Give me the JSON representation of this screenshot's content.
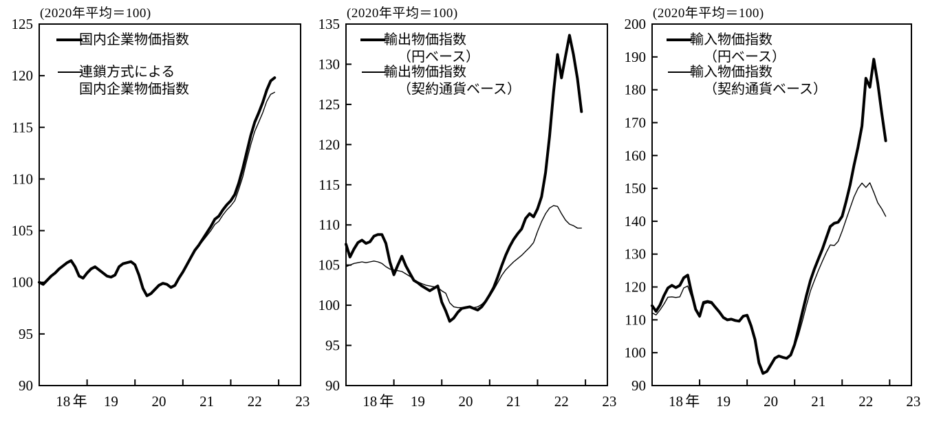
{
  "page": {
    "background": "#ffffff",
    "line_color": "#000000"
  },
  "panels": [
    {
      "header": "(2020年平均＝100)",
      "legend": [
        {
          "style": "thick",
          "lines": [
            "国内企業物価指数"
          ]
        },
        {
          "style": "thin",
          "lines": [
            "連鎖方式による",
            "国内企業物価指数"
          ]
        }
      ],
      "y_axis": {
        "min": 90,
        "max": 125,
        "step": 5
      },
      "x_labels": [
        "18",
        "年",
        "19",
        "20",
        "21",
        "22",
        "23"
      ]
    },
    {
      "header": "(2020年平均＝100)",
      "legend": [
        {
          "style": "thick",
          "lines": [
            "輸出物価指数",
            "（円ベース）"
          ]
        },
        {
          "style": "thin",
          "lines": [
            "輸出物価指数",
            "（契約通貨ベース）"
          ]
        }
      ],
      "y_axis": {
        "min": 90,
        "max": 135,
        "step": 5
      },
      "x_labels": [
        "18",
        "年",
        "19",
        "20",
        "21",
        "22",
        "23"
      ]
    },
    {
      "header": "(2020年平均＝100)",
      "legend": [
        {
          "style": "thick",
          "lines": [
            "輸入物価指数",
            "（円ベース）"
          ]
        },
        {
          "style": "thin",
          "lines": [
            "輸入物価指数",
            "（契約通貨ベース）"
          ]
        }
      ],
      "y_axis": {
        "min": 90,
        "max": 200,
        "step": 10
      },
      "x_labels": [
        "18",
        "年",
        "19",
        "20",
        "21",
        "22",
        "23"
      ]
    }
  ],
  "chart_data": {
    "type": "line",
    "note": "indexes, 2020 average = 100, monthly, Jan 2018 - Dec 2022",
    "months": [
      "2018-01",
      "2018-02",
      "2018-03",
      "2018-04",
      "2018-05",
      "2018-06",
      "2018-07",
      "2018-08",
      "2018-09",
      "2018-10",
      "2018-11",
      "2018-12",
      "2019-01",
      "2019-02",
      "2019-03",
      "2019-04",
      "2019-05",
      "2019-06",
      "2019-07",
      "2019-08",
      "2019-09",
      "2019-10",
      "2019-11",
      "2019-12",
      "2020-01",
      "2020-02",
      "2020-03",
      "2020-04",
      "2020-05",
      "2020-06",
      "2020-07",
      "2020-08",
      "2020-09",
      "2020-10",
      "2020-11",
      "2020-12",
      "2021-01",
      "2021-02",
      "2021-03",
      "2021-04",
      "2021-05",
      "2021-06",
      "2021-07",
      "2021-08",
      "2021-09",
      "2021-10",
      "2021-11",
      "2021-12",
      "2022-01",
      "2022-02",
      "2022-03",
      "2022-04",
      "2022-05",
      "2022-06",
      "2022-07",
      "2022-08",
      "2022-09",
      "2022-10",
      "2022-11",
      "2022-12"
    ],
    "charts": [
      {
        "type": "line",
        "title": "国内企業物価指数",
        "ylim": [
          90,
          125
        ],
        "ytick": 5,
        "series": [
          {
            "name": "国内企業物価指数",
            "style": "thick",
            "values": [
              100.0,
              99.8,
              100.2,
              100.6,
              100.9,
              101.3,
              101.6,
              101.9,
              102.1,
              101.5,
              100.6,
              100.4,
              100.9,
              101.3,
              101.5,
              101.2,
              100.9,
              100.6,
              100.5,
              100.7,
              101.5,
              101.8,
              101.9,
              102.0,
              101.7,
              100.7,
              99.4,
              98.7,
              98.9,
              99.3,
              99.7,
              99.9,
              99.8,
              99.5,
              99.7,
              100.4,
              101.0,
              101.7,
              102.4,
              103.1,
              103.6,
              104.2,
              104.8,
              105.4,
              106.1,
              106.4,
              107.0,
              107.5,
              107.9,
              108.5,
              109.6,
              111.0,
              112.6,
              114.2,
              115.5,
              116.4,
              117.4,
              118.6,
              119.5,
              119.8
            ]
          },
          {
            "name": "連鎖方式による国内企業物価指数",
            "style": "thin",
            "values": [
              100.0,
              99.8,
              100.2,
              100.6,
              100.9,
              101.3,
              101.6,
              101.9,
              102.1,
              101.5,
              100.6,
              100.4,
              100.9,
              101.3,
              101.5,
              101.2,
              100.9,
              100.6,
              100.5,
              100.7,
              101.5,
              101.8,
              101.9,
              102.0,
              101.7,
              100.7,
              99.4,
              98.7,
              98.9,
              99.3,
              99.7,
              99.9,
              99.8,
              99.5,
              99.7,
              100.4,
              100.9,
              101.6,
              102.3,
              103.0,
              103.5,
              104.0,
              104.5,
              105.0,
              105.6,
              105.9,
              106.5,
              107.0,
              107.4,
              107.9,
              109.0,
              110.2,
              111.8,
              113.3,
              114.6,
              115.5,
              116.4,
              117.5,
              118.2,
              118.4
            ]
          }
        ]
      },
      {
        "type": "line",
        "title": "輸出物価指数",
        "ylim": [
          90,
          135
        ],
        "ytick": 5,
        "series": [
          {
            "name": "輸出物価指数（円ベース）",
            "style": "thick",
            "values": [
              107.6,
              106.0,
              107.0,
              107.8,
              108.1,
              107.7,
              107.9,
              108.6,
              108.8,
              108.8,
              107.7,
              105.4,
              103.8,
              105.0,
              106.1,
              104.9,
              104.0,
              103.1,
              102.8,
              102.4,
              102.1,
              101.8,
              102.1,
              102.4,
              100.4,
              99.3,
              98.0,
              98.4,
              99.1,
              99.6,
              99.7,
              99.8,
              99.6,
              99.4,
              99.8,
              100.5,
              101.3,
              102.2,
              103.5,
              104.9,
              106.2,
              107.3,
              108.2,
              108.9,
              109.5,
              110.8,
              111.4,
              111.0,
              112.0,
              113.5,
              116.5,
              121.0,
              126.5,
              131.2,
              128.3,
              131.0,
              133.6,
              131.2,
              128.2,
              124.1
            ]
          },
          {
            "name": "輸出物価指数（契約通貨ベース）",
            "style": "thin",
            "values": [
              104.8,
              105.0,
              105.2,
              105.3,
              105.4,
              105.3,
              105.4,
              105.5,
              105.4,
              105.2,
              104.8,
              104.5,
              104.4,
              104.3,
              104.2,
              103.9,
              103.6,
              103.2,
              102.9,
              102.7,
              102.5,
              102.4,
              102.3,
              102.2,
              101.8,
              101.5,
              100.3,
              99.8,
              99.7,
              99.7,
              99.8,
              99.7,
              99.7,
              99.8,
              100.1,
              100.6,
              101.1,
              101.9,
              102.8,
              103.7,
              104.4,
              104.9,
              105.4,
              105.8,
              106.2,
              106.7,
              107.2,
              107.8,
              109.2,
              110.4,
              111.4,
              112.1,
              112.4,
              112.3,
              111.4,
              110.6,
              110.1,
              109.9,
              109.6,
              109.6
            ]
          }
        ]
      },
      {
        "type": "line",
        "title": "輸入物価指数",
        "ylim": [
          90,
          200
        ],
        "ytick": 10,
        "series": [
          {
            "name": "輸入物価指数（円ベース）",
            "style": "thick",
            "values": [
              114.3,
              112.6,
              114.5,
              117.4,
              119.7,
              120.5,
              119.8,
              120.5,
              122.8,
              123.6,
              118.0,
              113.2,
              111.1,
              115.3,
              115.6,
              115.3,
              113.8,
              112.4,
              110.7,
              110.0,
              110.2,
              109.8,
              109.6,
              111.1,
              111.4,
              108.2,
              104.0,
              96.9,
              93.7,
              94.3,
              96.3,
              98.3,
              99.0,
              98.6,
              98.3,
              99.3,
              102.5,
              107.5,
              112.5,
              117.5,
              122.0,
              125.5,
              128.5,
              131.5,
              135.0,
              138.4,
              139.4,
              139.7,
              141.5,
              146.0,
              151.0,
              157.0,
              162.5,
              169.0,
              183.5,
              180.8,
              189.3,
              182.0,
              173.0,
              164.5
            ]
          },
          {
            "name": "輸入物価指数（契約通貨ベース）",
            "style": "thin",
            "values": [
              112.1,
              111.5,
              113.0,
              114.8,
              116.9,
              117.0,
              116.8,
              117.0,
              119.7,
              120.3,
              116.8,
              112.8,
              110.8,
              114.8,
              115.2,
              114.9,
              113.4,
              112.0,
              110.4,
              109.8,
              110.0,
              109.6,
              109.4,
              110.9,
              111.2,
              108.0,
              103.8,
              96.7,
              93.6,
              94.4,
              96.5,
              98.5,
              99.2,
              98.8,
              98.5,
              99.1,
              101.8,
              105.5,
              109.8,
              114.5,
              118.8,
              122.0,
              125.0,
              127.8,
              130.5,
              132.8,
              132.6,
              133.9,
              137.0,
              140.5,
              144.0,
              147.4,
              150.0,
              151.6,
              150.3,
              151.7,
              148.8,
              145.6,
              143.8,
              141.5
            ]
          }
        ]
      }
    ]
  }
}
